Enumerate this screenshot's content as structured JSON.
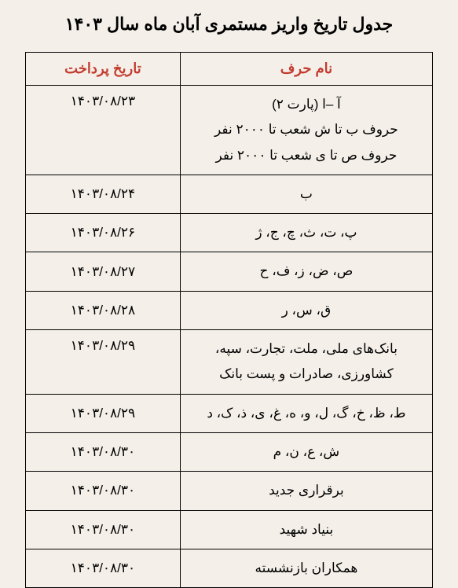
{
  "title": "جدول تاریخ واریز مستمری آبان ماه سال ۱۴۰۳",
  "columns": {
    "name": "نام حرف",
    "date": "تاریخ پرداخت"
  },
  "header_color": "#c33c2f",
  "background_color": "#f4f0e9",
  "border_color": "#000000",
  "col_widths": {
    "name_pct": 62,
    "date_pct": 38
  },
  "rows": [
    {
      "name": "آ –ا (پارت ۲)\nحروف ب تا ش شعب تا ۲۰۰۰ نفر\nحروف ص تا ی شعب تا ۲۰۰۰ نفر",
      "date": "۱۴۰۳/۰۸/۲۳",
      "multiline": true,
      "date_align": "top"
    },
    {
      "name": "ب",
      "date": "۱۴۰۳/۰۸/۲۴"
    },
    {
      "name": "پ، ت، ث، چ، ج، ژ",
      "date": "۱۴۰۳/۰۸/۲۶"
    },
    {
      "name": "ص، ض، ز، ف، ح",
      "date": "۱۴۰۳/۰۸/۲۷"
    },
    {
      "name": "ق، س، ر",
      "date": "۱۴۰۳/۰۸/۲۸"
    },
    {
      "name": "بانک‌های ملی، ملت، تجارت، سپه،\nکشاورزی، صادرات و پست بانک",
      "date": "۱۴۰۳/۰۸/۲۹",
      "multiline": true,
      "date_align": "top"
    },
    {
      "name": "ط، ظ، خ، گ، ل، و، ه، غ، ی، ذ، ک، د",
      "date": "۱۴۰۳/۰۸/۲۹"
    },
    {
      "name": "ش، ع، ن، م",
      "date": "۱۴۰۳/۰۸/۳۰"
    },
    {
      "name": "برقراری جدید",
      "date": "۱۴۰۳/۰۸/۳۰"
    },
    {
      "name": "بنیاد شهید",
      "date": "۱۴۰۳/۰۸/۳۰"
    },
    {
      "name": "همکاران بازنشسته",
      "date": "۱۴۰۳/۰۸/۳۰"
    }
  ]
}
